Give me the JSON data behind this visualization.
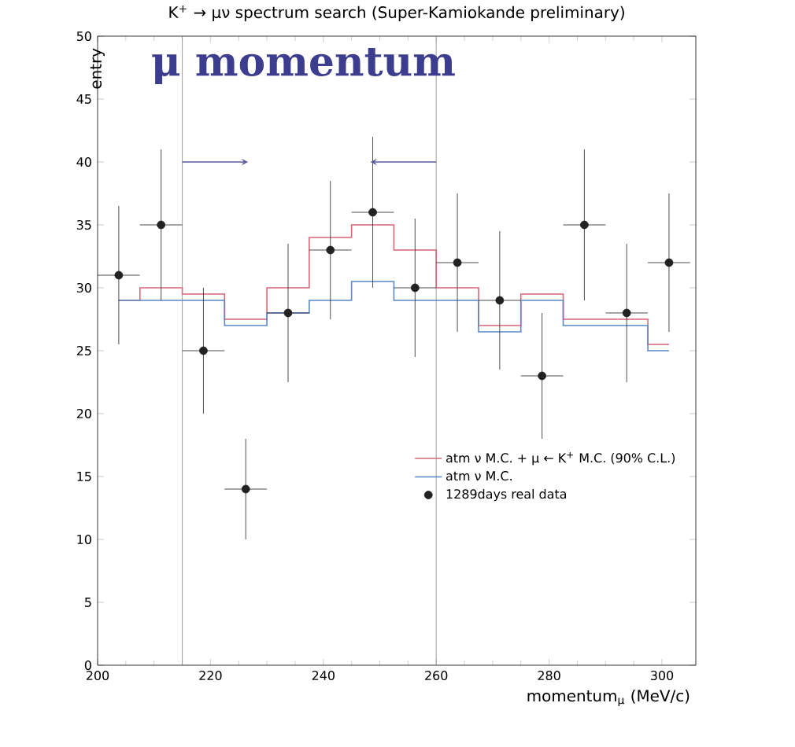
{
  "chart_data": {
    "type": "scatter",
    "title": "K$^{+}$ → μν spectrum search (Super-Kamiokande preliminary)",
    "xlabel": "momentum$_{μ}$ (MeV/c)",
    "ylabel": "entry",
    "annotations": [
      "μ momentum"
    ],
    "xlim": [
      200,
      306
    ],
    "ylim": [
      0,
      50
    ],
    "xticks": [
      200,
      220,
      240,
      260,
      280,
      300
    ],
    "yticks": [
      0,
      5,
      10,
      15,
      20,
      25,
      30,
      35,
      40,
      45,
      50
    ],
    "x": [
      203.75,
      211.25,
      218.75,
      226.25,
      233.75,
      241.25,
      248.75,
      256.25,
      263.75,
      271.25,
      278.75,
      286.25,
      293.75,
      301.25
    ],
    "series": [
      {
        "name": "1289days real data",
        "marker": "circle",
        "color": "#222222",
        "values": [
          31,
          35,
          25,
          14,
          28,
          33,
          36,
          30,
          32,
          29,
          23,
          35,
          28,
          32
        ],
        "errors": [
          5.5,
          6,
          5,
          4,
          5.5,
          5.5,
          6,
          5.5,
          5.5,
          5.5,
          5,
          6,
          5.5,
          5.5
        ],
        "xerrors": [
          3.75,
          3.75,
          3.75,
          3.75,
          3.75,
          3.75,
          3.75,
          3.75,
          3.75,
          3.75,
          3.75,
          3.75,
          3.75,
          3.75
        ]
      },
      {
        "name": "atm ν M.C. + μ ← K$^{+}$ M.C. (90% C.L.)",
        "type": "step",
        "marker": "none",
        "color": "#d86878",
        "values": [
          29,
          30,
          29.5,
          27.5,
          30,
          34,
          35,
          33,
          30,
          27,
          29.5,
          27.5,
          27.5,
          25.5
        ]
      },
      {
        "name": "atm ν M.C.",
        "type": "step",
        "marker": "none",
        "color": "#5a88c8",
        "values": [
          29,
          29,
          29,
          27,
          28,
          29,
          30.5,
          29,
          29,
          26.5,
          29,
          27,
          27,
          25
        ]
      }
    ],
    "ref_lines": [
      {
        "axis": "x",
        "value": 215,
        "color": "#888888",
        "line_style": "solid"
      },
      {
        "axis": "x",
        "value": 260,
        "color": "#888888",
        "line_style": "solid"
      }
    ],
    "legend": "bottom right",
    "grid": false
  }
}
